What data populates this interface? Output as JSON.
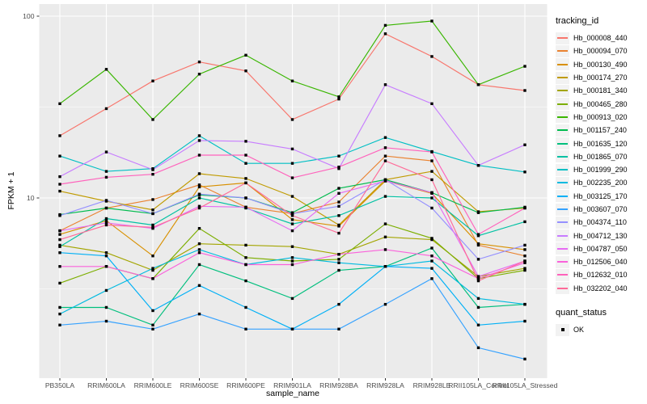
{
  "chart_data": {
    "type": "line",
    "title": "",
    "xlabel": "sample_name",
    "ylabel": "FPKM + 1",
    "y_scale": "log10",
    "ylim": [
      1.02,
      113
    ],
    "y_ticks": [
      100,
      10
    ],
    "y_minor_ticks": [
      31.62,
      3.162
    ],
    "grid": true,
    "panel_bg": "#EBEBEB",
    "grid_color": "#FFFFFF",
    "tick_label_color": "#4D4D4D",
    "marker": {
      "shape": "square",
      "color": "#000000",
      "meaning": "OK"
    },
    "categories": [
      "PB350LA",
      "RRIM600LA",
      "RRIM600LE",
      "RRIM600SE",
      "RRIM600PE",
      "RRIM901LA",
      "RRIM928BA",
      "RRIM928LA",
      "RRIM928LE",
      "RRII105LA_Control",
      "RRII105LA_Stressed"
    ],
    "series": [
      {
        "name": "Hb_000008_440",
        "color": "#F8766D",
        "values": [
          22,
          31,
          44,
          56,
          50,
          27,
          35,
          80,
          60,
          42,
          39
        ]
      },
      {
        "name": "Hb_000094_070",
        "color": "#EA8331",
        "values": [
          6.6,
          8.8,
          9.8,
          11.8,
          8.9,
          8.2,
          9.5,
          17,
          16,
          5.5,
          4.8
        ]
      },
      {
        "name": "Hb_000130_490",
        "color": "#D89000",
        "values": [
          6.3,
          7.5,
          4.8,
          11.5,
          12.1,
          7.6,
          7.0,
          12.4,
          10.6,
          5.6,
          5.2
        ]
      },
      {
        "name": "Hb_000174_270",
        "color": "#C09B00",
        "values": [
          10.9,
          9.6,
          8.6,
          13.6,
          12.8,
          10.2,
          7.1,
          12.6,
          14.0,
          8.4,
          8.8
        ]
      },
      {
        "name": "Hb_000181_340",
        "color": "#A3A500",
        "values": [
          5.5,
          5.0,
          4.0,
          5.6,
          5.5,
          5.4,
          4.9,
          6.1,
          5.9,
          3.7,
          4.1
        ]
      },
      {
        "name": "Hb_000465_280",
        "color": "#7CAE00",
        "values": [
          3.4,
          4.2,
          3.6,
          6.8,
          4.7,
          4.5,
          4.6,
          7.2,
          6.0,
          3.6,
          4.0
        ]
      },
      {
        "name": "Hb_000913_020",
        "color": "#39B600",
        "values": [
          33,
          51,
          27,
          48,
          61,
          44,
          36,
          89,
          94,
          42,
          53
        ]
      },
      {
        "name": "Hb_001157_240",
        "color": "#00BB4E",
        "values": [
          8.1,
          8.8,
          8.2,
          10.4,
          10.0,
          8.3,
          11.3,
          12.6,
          10.7,
          8.3,
          8.9
        ]
      },
      {
        "name": "Hb_001635_120",
        "color": "#00BF7D",
        "values": [
          2.5,
          2.5,
          2.0,
          4.3,
          3.5,
          2.8,
          4.0,
          4.2,
          5.3,
          2.5,
          2.6
        ]
      },
      {
        "name": "Hb_001865_070",
        "color": "#00C1A3",
        "values": [
          5.4,
          7.7,
          7.1,
          10.0,
          8.8,
          7.2,
          8.0,
          10.2,
          10.0,
          6.2,
          7.4
        ]
      },
      {
        "name": "Hb_001999_290",
        "color": "#00BFC4",
        "values": [
          17,
          14,
          14.5,
          22,
          15.5,
          15.5,
          17,
          21.5,
          18,
          15.1,
          13.9
        ]
      },
      {
        "name": "Hb_002235_200",
        "color": "#00BAE0",
        "values": [
          2.3,
          3.1,
          4.1,
          5.2,
          4.3,
          4.7,
          4.4,
          4.2,
          4.5,
          2.8,
          2.6
        ]
      },
      {
        "name": "Hb_003125_170",
        "color": "#00B0F6",
        "values": [
          5.0,
          4.8,
          2.4,
          3.3,
          2.5,
          1.9,
          2.6,
          4.2,
          4.1,
          2.0,
          2.1
        ]
      },
      {
        "name": "Hb_003607_070",
        "color": "#35A2FF",
        "values": [
          2.0,
          2.1,
          1.9,
          2.3,
          1.9,
          1.9,
          1.9,
          2.6,
          3.6,
          1.5,
          1.3
        ]
      },
      {
        "name": "Hb_004374_110",
        "color": "#9590FF",
        "values": [
          8.0,
          9.7,
          8.2,
          10.5,
          10.0,
          8.2,
          9.0,
          12.6,
          8.8,
          4.6,
          5.5
        ]
      },
      {
        "name": "Hb_004712_130",
        "color": "#C77CFF",
        "values": [
          13.1,
          17.9,
          14.3,
          20.7,
          20.5,
          18.6,
          14.5,
          42,
          33,
          15.1,
          19.6
        ]
      },
      {
        "name": "Hb_004787_050",
        "color": "#E76BF3",
        "values": [
          6.6,
          7.3,
          6.8,
          9.0,
          8.9,
          6.6,
          10.6,
          12.4,
          10.7,
          3.7,
          4.5
        ]
      },
      {
        "name": "Hb_012506_040",
        "color": "#FA62DB",
        "values": [
          4.2,
          4.2,
          3.6,
          5.0,
          4.3,
          4.3,
          4.9,
          5.2,
          4.8,
          3.6,
          4.4
        ]
      },
      {
        "name": "Hb_012632_010",
        "color": "#FF62BC",
        "values": [
          11.9,
          13.0,
          13.5,
          17.2,
          17.2,
          12.9,
          14.8,
          18.9,
          17.9,
          6.3,
          8.8
        ]
      },
      {
        "name": "Hb_032202_040",
        "color": "#FF6A98",
        "values": [
          5.9,
          7.1,
          6.9,
          8.8,
          12.1,
          8.0,
          6.4,
          16.0,
          12.6,
          3.5,
          4.5
        ]
      }
    ],
    "legend": {
      "color_title": "tracking_id",
      "shape_title": "quant_status",
      "shape_entries": [
        {
          "label": "OK"
        }
      ],
      "position": "right"
    }
  }
}
